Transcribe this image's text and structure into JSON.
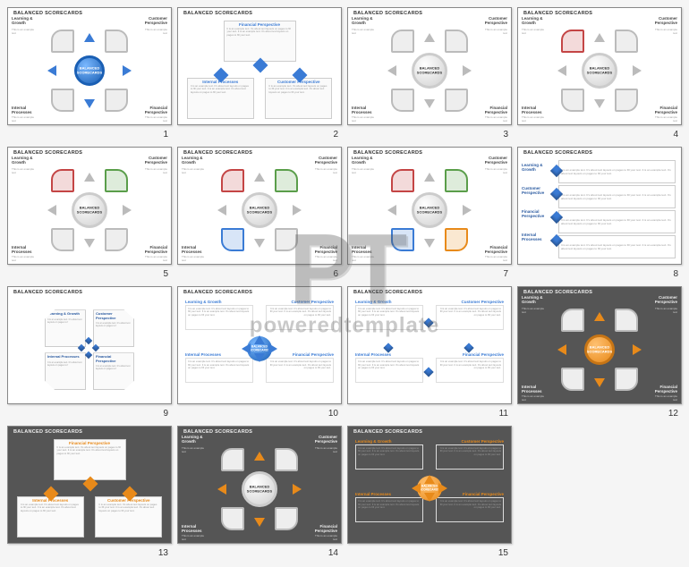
{
  "watermark": {
    "logo": "PT",
    "text": "poweredtemplate"
  },
  "common": {
    "title": "BALANCED SCORECARDS",
    "center_label": "BALANCED\nSCORECARDS",
    "sample": "This is an example text",
    "lorem": "It is an example text. It's about text layouts on pages to fill your text. It is an example text. It's about text layouts on pages to fill your text.",
    "quadrants": {
      "tl": "Learning &\nGrowth",
      "tr": "Customer\nPerspective",
      "bl": "Internal\nProcesses",
      "br": "Financial\nPerspective"
    },
    "three": {
      "top": "Financial Perspective",
      "bl": "Internal Processes",
      "br": "Customer Perspective"
    }
  },
  "colors": {
    "grey": "#bbbbbb",
    "blue": "#3a7bd5",
    "darkblue": "#2a5aa0",
    "red": "#c44545",
    "green": "#5a9e4a",
    "orange": "#e88a1a",
    "purple": "#6a5a9e",
    "teal": "#4a9e9e",
    "bg_dark": "#555555",
    "bg_light": "#ffffff"
  },
  "slides": [
    {
      "n": 1,
      "type": "cross",
      "bg": "light",
      "ring": "blue",
      "ring_size": 34,
      "seg_colors": [
        "grey",
        "grey",
        "grey",
        "grey"
      ],
      "arrows": "blue"
    },
    {
      "n": 2,
      "type": "three",
      "bg": "light",
      "accent": "blue"
    },
    {
      "n": 3,
      "type": "cross",
      "bg": "light",
      "ring": "grey",
      "ring_size": 40,
      "seg_colors": [
        "grey",
        "grey",
        "grey",
        "grey"
      ],
      "arrows": "grey"
    },
    {
      "n": 4,
      "type": "cross",
      "bg": "light",
      "ring": "grey",
      "ring_size": 40,
      "seg_colors": [
        "red",
        "grey",
        "grey",
        "grey"
      ],
      "arrows": "grey"
    },
    {
      "n": 5,
      "type": "cross",
      "bg": "light",
      "ring": "grey",
      "ring_size": 40,
      "seg_colors": [
        "red",
        "green",
        "grey",
        "grey"
      ],
      "arrows": "grey"
    },
    {
      "n": 6,
      "type": "cross",
      "bg": "light",
      "ring": "grey",
      "ring_size": 40,
      "seg_colors": [
        "red",
        "green",
        "blue",
        "grey"
      ],
      "arrows": "grey"
    },
    {
      "n": 7,
      "type": "cross",
      "bg": "light",
      "ring": "grey",
      "ring_size": 40,
      "seg_colors": [
        "red",
        "green",
        "blue",
        "orange"
      ],
      "arrows": "grey"
    },
    {
      "n": 8,
      "type": "list",
      "bg": "light",
      "accent": "blue"
    },
    {
      "n": 9,
      "type": "oct",
      "bg": "light",
      "accent": "blue"
    },
    {
      "n": 10,
      "type": "fourtxt",
      "bg": "light",
      "accent": "blue",
      "sphere": "blue"
    },
    {
      "n": 11,
      "type": "fourtxt",
      "bg": "light",
      "accent": "blue",
      "sphere": "none"
    },
    {
      "n": 12,
      "type": "cross",
      "bg": "dark",
      "ring": "orange",
      "ring_size": 34,
      "seg_colors": [
        "grey",
        "grey",
        "grey",
        "grey"
      ],
      "arrows": "orange"
    },
    {
      "n": 13,
      "type": "three",
      "bg": "dark",
      "accent": "orange"
    },
    {
      "n": 14,
      "type": "cross",
      "bg": "dark",
      "ring": "grey",
      "ring_size": 40,
      "seg_colors": [
        "grey",
        "grey",
        "grey",
        "grey"
      ],
      "arrows": "orange"
    },
    {
      "n": 15,
      "type": "fourtxt",
      "bg": "dark",
      "accent": "orange",
      "sphere": "orange"
    }
  ]
}
